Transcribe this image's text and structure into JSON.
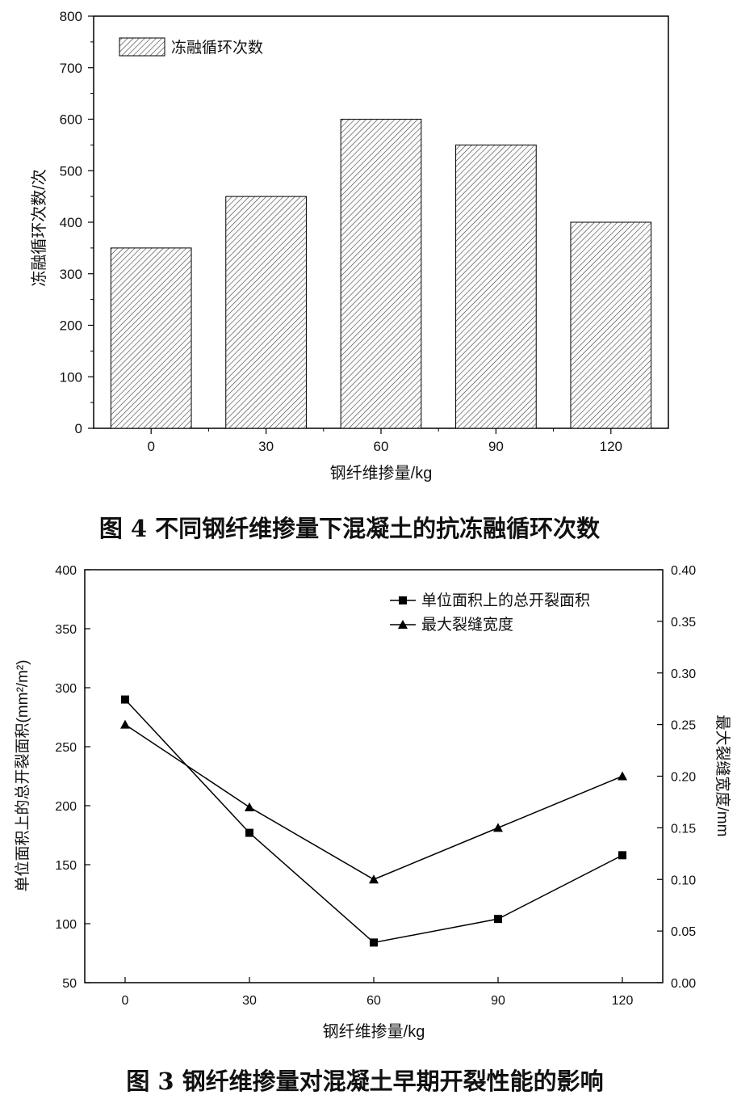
{
  "figure4": {
    "caption": "图 4  不同钢纤维掺量下混凝土的抗冻融循环次数",
    "chart_data": {
      "type": "bar",
      "categories": [
        "0",
        "30",
        "60",
        "90",
        "120"
      ],
      "series": [
        {
          "name": "冻融循环次数",
          "values": [
            350,
            450,
            600,
            550,
            400
          ]
        }
      ],
      "xlabel": "钢纤维掺量/kg",
      "ylabel": "冻融循环次数/次",
      "ylim": [
        0,
        800
      ],
      "yticks": [
        0,
        100,
        200,
        300,
        400,
        500,
        600,
        700,
        800
      ],
      "bar_pattern": "diagonal-hatch",
      "legend_position": "top-left",
      "grid": false
    }
  },
  "figure3": {
    "caption": "图 3  钢纤维掺量对混凝土早期开裂性能的影响",
    "chart_data": {
      "type": "line",
      "x": [
        0,
        30,
        60,
        90,
        120
      ],
      "xticks": [
        "0",
        "30",
        "60",
        "90",
        "120"
      ],
      "xlabel": "钢纤维掺量/kg",
      "series": [
        {
          "name": "单位面积上的总开裂面积",
          "axis": "left",
          "marker": "square",
          "values": [
            290,
            177,
            84,
            104,
            158
          ]
        },
        {
          "name": "最大裂缝宽度",
          "axis": "right",
          "marker": "triangle",
          "values": [
            0.25,
            0.17,
            0.1,
            0.15,
            0.2
          ]
        }
      ],
      "ylabel_left": "单位面积上的总开裂面积(mm²/m²)",
      "ylabel_right": "最大裂缝宽度/mm",
      "ylim_left": [
        50,
        400
      ],
      "ylim_right": [
        0,
        0.4
      ],
      "yticks_left": [
        50,
        100,
        150,
        200,
        250,
        300,
        350,
        400
      ],
      "yticks_right": [
        "0.00",
        "0.05",
        "0.10",
        "0.15",
        "0.20",
        "0.25",
        "0.30",
        "0.35",
        "0.40"
      ],
      "legend_position": "top-right",
      "grid": false
    }
  }
}
